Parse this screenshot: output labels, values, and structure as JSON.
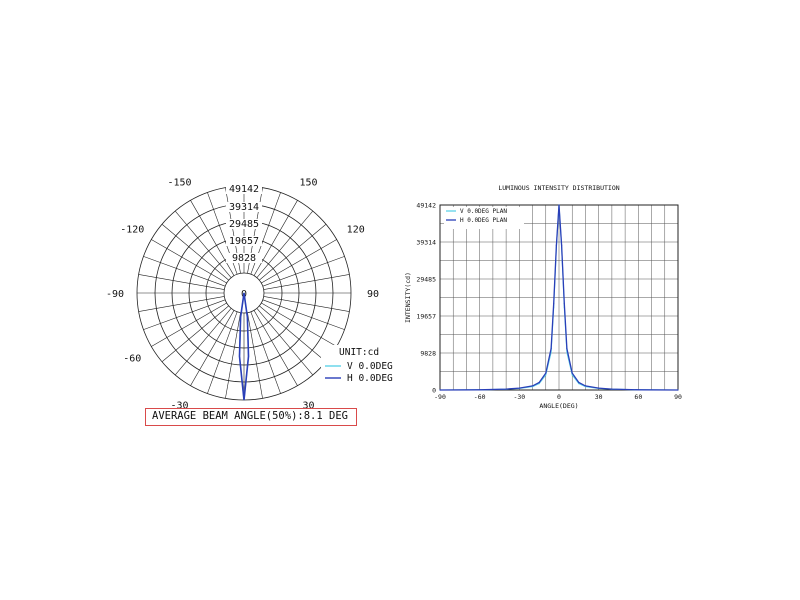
{
  "chart_data": [
    {
      "type": "polar",
      "radial_ticks": [
        "49142",
        "39314",
        "29485",
        "19657",
        "9828",
        "0"
      ],
      "radial_max": 49142,
      "angle_labels": [
        "-150",
        "150",
        "-120",
        "120",
        "-90",
        "90",
        "-60",
        "60",
        "-30",
        "30"
      ],
      "unit_label": "UNIT:cd",
      "series": [
        {
          "name": "V 0.0DEG",
          "color": "#5fd3e8",
          "angles": [
            -8,
            -4.05,
            0,
            4.05,
            8
          ],
          "values": [
            2500,
            24571,
            49142,
            24571,
            2500
          ]
        },
        {
          "name": "H 0.0DEG",
          "color": "#2a3fb8",
          "angles": [
            -8,
            -4.05,
            0,
            4.05,
            8
          ],
          "values": [
            2500,
            24571,
            49142,
            24571,
            2500
          ]
        }
      ],
      "annotation": "AVERAGE BEAM ANGLE(50%):8.1 DEG"
    },
    {
      "type": "line",
      "title": "LUMINOUS INTENSITY DISTRIBUTION",
      "xlabel": "ANGLE(DEG)",
      "ylabel": "INTENSITY(cd)",
      "xlim": [
        -90,
        90
      ],
      "ylim": [
        0,
        49142
      ],
      "xticks": [
        "-90",
        "-60",
        "-30",
        "0",
        "30",
        "60",
        "90"
      ],
      "yticks": [
        "0",
        "9828",
        "19657",
        "29485",
        "39314",
        "49142"
      ],
      "grid": true,
      "legend_position": "top-left",
      "x": [
        -90,
        -60,
        -40,
        -30,
        -20,
        -15,
        -10,
        -6,
        -4,
        -2,
        0,
        2,
        4,
        6,
        10,
        15,
        20,
        30,
        40,
        60,
        90
      ],
      "series": [
        {
          "name": "V 0.0DEG PLAN",
          "color": "#5fd3e8",
          "values": [
            0,
            50,
            200,
            400,
            900,
            1700,
            4000,
            10000,
            22000,
            38000,
            49142,
            38000,
            22000,
            10000,
            4000,
            1700,
            900,
            400,
            200,
            50,
            0
          ]
        },
        {
          "name": "H 0.0DEG PLAN",
          "color": "#2a3fb8",
          "values": [
            0,
            60,
            250,
            500,
            1100,
            2000,
            4500,
            11000,
            23000,
            38500,
            49142,
            38500,
            23000,
            11000,
            4500,
            2000,
            1100,
            500,
            250,
            60,
            0
          ]
        }
      ]
    }
  ]
}
